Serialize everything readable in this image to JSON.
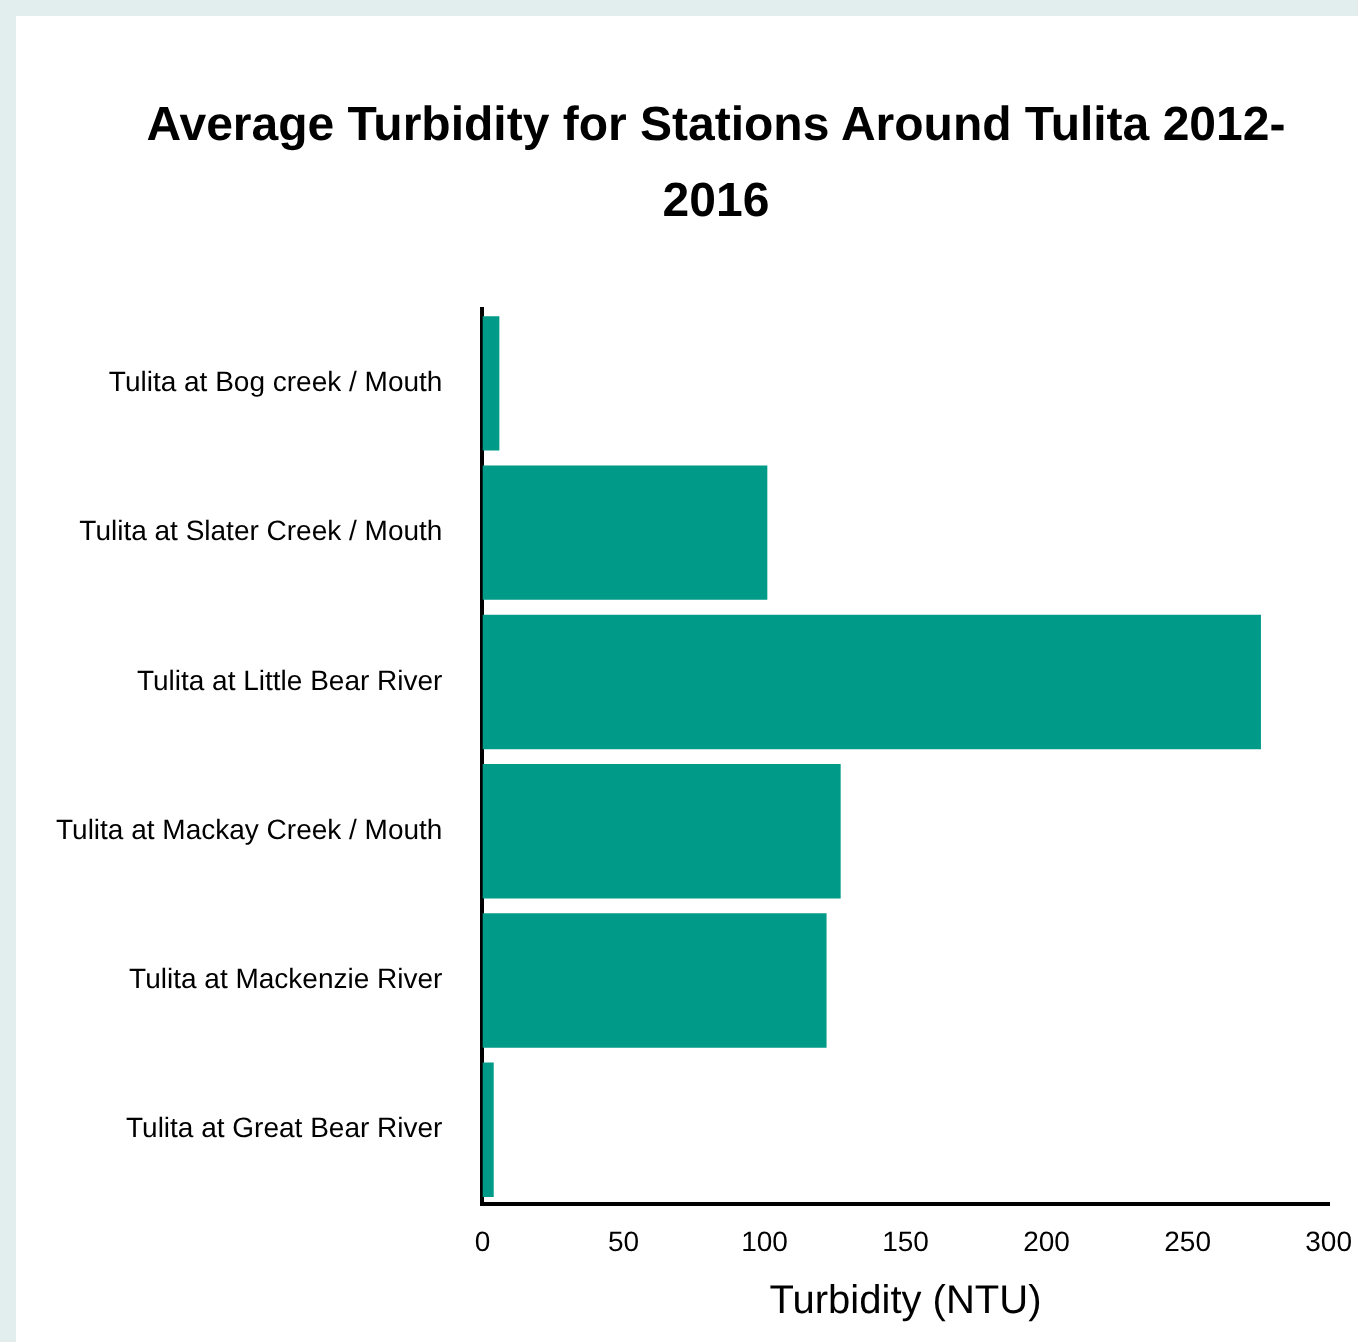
{
  "chart_data": {
    "type": "bar",
    "orientation": "horizontal",
    "title": "Average Turbidity for Stations Around Tulita 2012-2016",
    "xlabel": "Turbidity (NTU)",
    "categories": [
      "Tulita at Bog creek / Mouth",
      "Tulita at Slater Creek / Mouth",
      "Tulita at Little Bear River",
      "Tulita at Mackay Creek / Mouth",
      "Tulita at Mackenzie River",
      "Tulita at Great Bear River"
    ],
    "values": [
      6,
      101,
      276,
      127,
      122,
      4
    ],
    "color": "#009a88",
    "xlim": [
      0,
      300
    ],
    "xticks": [
      0,
      50,
      100,
      150,
      200,
      250,
      300
    ],
    "grid": false,
    "legend": false
  }
}
